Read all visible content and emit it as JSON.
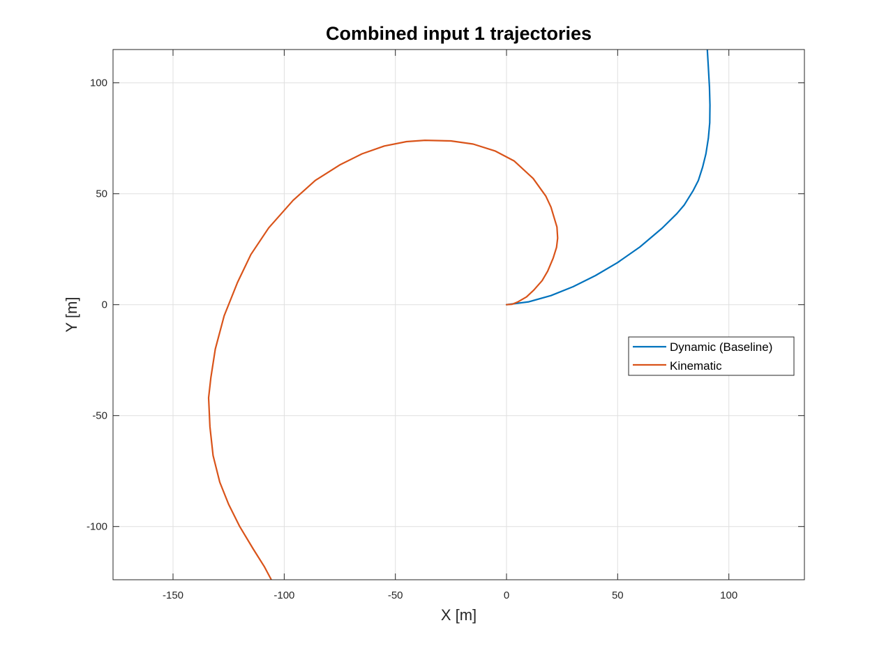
{
  "chart_data": {
    "type": "line",
    "title": "Combined input 1 trajectories",
    "xlabel": "X [m]",
    "ylabel": "Y [m]",
    "xlim": [
      -177,
      134
    ],
    "ylim": [
      -124,
      115
    ],
    "xticks": [
      -150,
      -100,
      -50,
      0,
      50,
      100
    ],
    "yticks": [
      -100,
      -50,
      0,
      50,
      100
    ],
    "grid": true,
    "legend_position": "right",
    "series": [
      {
        "name": "Dynamic (Baseline)",
        "color": "#0072BD",
        "x": [
          0,
          10,
          20,
          30,
          40,
          50,
          60,
          70,
          76.6,
          80,
          84,
          86.3,
          88.2,
          89.7,
          90.8,
          91.4,
          91.5,
          91.3,
          90.8,
          90.3
        ],
        "y": [
          0,
          1.3,
          4.1,
          8.1,
          13.1,
          19.0,
          26.0,
          34.5,
          41.0,
          45.0,
          51.5,
          56.0,
          62.0,
          68.0,
          75.0,
          82.0,
          90.0,
          98.0,
          107.0,
          115.0
        ]
      },
      {
        "name": "Kinematic",
        "color": "#D95319",
        "x": [
          0,
          2.5,
          5,
          9,
          12.3,
          16,
          18.5,
          21,
          22.5,
          23,
          22.7,
          20,
          17.7,
          12,
          3.4,
          -5,
          -15,
          -25,
          -36.7,
          -45,
          -55,
          -65,
          -75,
          -86,
          -96,
          -107,
          -115,
          -121,
          -127,
          -131,
          -133,
          -134,
          -133.4,
          -132,
          -129,
          -125,
          -120,
          -114,
          -109,
          -105.8
        ],
        "y": [
          0,
          0.2,
          1.2,
          3.5,
          6.6,
          10.8,
          15.1,
          21.0,
          25.8,
          30.0,
          35.0,
          44.0,
          48.9,
          56.9,
          64.8,
          69.2,
          72.4,
          73.8,
          74.1,
          73.5,
          71.5,
          68.0,
          63.0,
          56.0,
          47.0,
          34.6,
          22.6,
          10.0,
          -5.0,
          -20.0,
          -33.0,
          -42.0,
          -55.0,
          -68.0,
          -80.0,
          -90.0,
          -100.0,
          -110.0,
          -118.0,
          -124.0
        ]
      }
    ]
  }
}
